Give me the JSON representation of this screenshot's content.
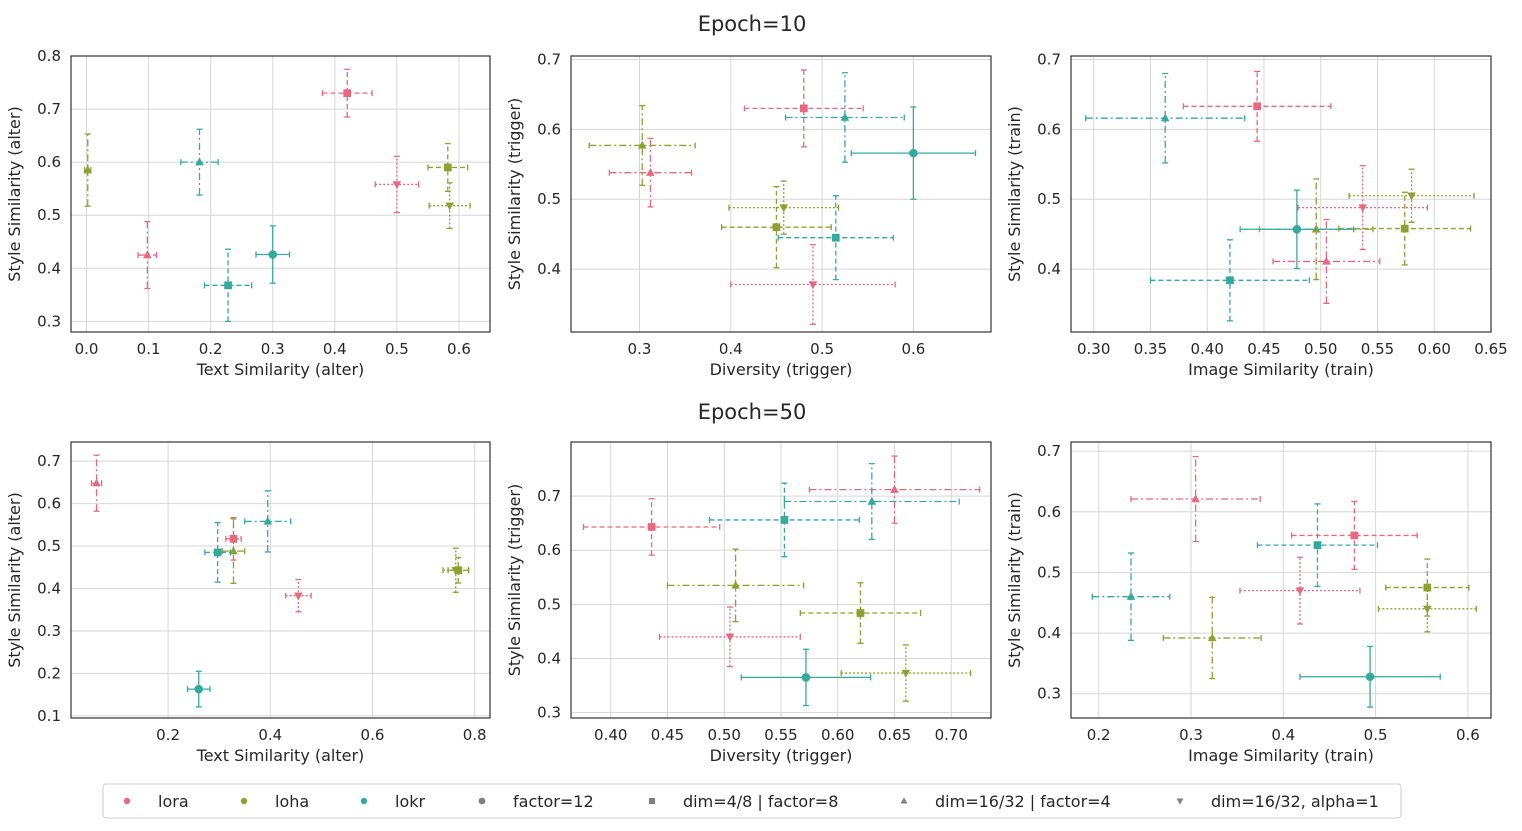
{
  "figure": {
    "row_titles": [
      "Epoch=10",
      "Epoch=50"
    ]
  },
  "colors": {
    "lora": "#e8697f",
    "loha": "#8ea031",
    "lokr": "#35aa9c",
    "marker_legend": "#808080"
  },
  "legend": {
    "placement": "bottom-center",
    "items": [
      {
        "label": "lora",
        "kind": "color",
        "key": "lora"
      },
      {
        "label": "loha",
        "kind": "color",
        "key": "loha"
      },
      {
        "label": "lokr",
        "kind": "color",
        "key": "lokr"
      },
      {
        "label": "factor=12",
        "kind": "marker",
        "marker": "circle"
      },
      {
        "label": "dim=4/8 | factor=8",
        "kind": "marker",
        "marker": "square"
      },
      {
        "label": "dim=16/32 | factor=4",
        "kind": "marker",
        "marker": "triangle-up"
      },
      {
        "label": "dim=16/32, alpha=1",
        "kind": "marker",
        "marker": "triangle-down"
      }
    ]
  },
  "chart_data": [
    {
      "type": "scatter",
      "row": 0,
      "col": 0,
      "xlabel": "Text Similarity (alter)",
      "ylabel": "Style Similarity (alter)",
      "xlim": [
        -0.025,
        0.65
      ],
      "ylim": [
        0.28,
        0.8
      ],
      "xticks": [
        0.0,
        0.1,
        0.2,
        0.3,
        0.4,
        0.5,
        0.6
      ],
      "xtick_labels": [
        "0.0",
        "0.1",
        "0.2",
        "0.3",
        "0.4",
        "0.5",
        "0.6"
      ],
      "yticks": [
        0.3,
        0.4,
        0.5,
        0.6,
        0.7,
        0.8
      ],
      "ytick_labels": [
        "0.3",
        "0.4",
        "0.5",
        "0.6",
        "0.7",
        "0.8"
      ],
      "grid": true,
      "points": [
        {
          "algo": "lora",
          "marker": "square",
          "x": 0.42,
          "y": 0.73,
          "xerr": 0.04,
          "yerr": 0.045
        },
        {
          "algo": "lora",
          "marker": "triangle-down",
          "x": 0.5,
          "y": 0.558,
          "xerr": 0.035,
          "yerr": 0.053
        },
        {
          "algo": "lora",
          "marker": "triangle-up",
          "x": 0.098,
          "y": 0.425,
          "xerr": 0.015,
          "yerr": 0.063
        },
        {
          "algo": "loha",
          "marker": "triangle-up",
          "x": 0.002,
          "y": 0.585,
          "xerr": 0.005,
          "yerr": 0.068
        },
        {
          "algo": "loha",
          "marker": "square",
          "x": 0.582,
          "y": 0.59,
          "xerr": 0.032,
          "yerr": 0.045
        },
        {
          "algo": "loha",
          "marker": "triangle-down",
          "x": 0.585,
          "y": 0.518,
          "xerr": 0.033,
          "yerr": 0.043
        },
        {
          "algo": "lokr",
          "marker": "triangle-up",
          "x": 0.182,
          "y": 0.6,
          "xerr": 0.03,
          "yerr": 0.062
        },
        {
          "algo": "lokr",
          "marker": "square",
          "x": 0.228,
          "y": 0.368,
          "xerr": 0.038,
          "yerr": 0.068
        },
        {
          "algo": "lokr",
          "marker": "circle",
          "x": 0.3,
          "y": 0.426,
          "xerr": 0.027,
          "yerr": 0.054
        }
      ]
    },
    {
      "type": "scatter",
      "row": 0,
      "col": 1,
      "xlabel": "Diversity (trigger)",
      "ylabel": "Style Similarity (trigger)",
      "xlim": [
        0.225,
        0.685
      ],
      "ylim": [
        0.31,
        0.705
      ],
      "xticks": [
        0.3,
        0.4,
        0.5,
        0.6
      ],
      "xtick_labels": [
        "0.3",
        "0.4",
        "0.5",
        "0.6"
      ],
      "yticks": [
        0.4,
        0.5,
        0.6,
        0.7
      ],
      "ytick_labels": [
        "0.4",
        "0.5",
        "0.6",
        "0.7"
      ],
      "grid": true,
      "points": [
        {
          "algo": "lora",
          "marker": "square",
          "x": 0.48,
          "y": 0.63,
          "xerr": 0.065,
          "yerr": 0.055
        },
        {
          "algo": "lora",
          "marker": "triangle-up",
          "x": 0.312,
          "y": 0.538,
          "xerr": 0.045,
          "yerr": 0.049
        },
        {
          "algo": "lora",
          "marker": "triangle-down",
          "x": 0.49,
          "y": 0.378,
          "xerr": 0.09,
          "yerr": 0.057
        },
        {
          "algo": "loha",
          "marker": "triangle-up",
          "x": 0.303,
          "y": 0.577,
          "xerr": 0.058,
          "yerr": 0.057
        },
        {
          "algo": "loha",
          "marker": "triangle-down",
          "x": 0.458,
          "y": 0.488,
          "xerr": 0.06,
          "yerr": 0.038
        },
        {
          "algo": "loha",
          "marker": "square",
          "x": 0.45,
          "y": 0.46,
          "xerr": 0.06,
          "yerr": 0.058
        },
        {
          "algo": "lokr",
          "marker": "triangle-up",
          "x": 0.525,
          "y": 0.617,
          "xerr": 0.065,
          "yerr": 0.064
        },
        {
          "algo": "lokr",
          "marker": "circle",
          "x": 0.6,
          "y": 0.566,
          "xerr": 0.068,
          "yerr": 0.066
        },
        {
          "algo": "lokr",
          "marker": "square",
          "x": 0.515,
          "y": 0.445,
          "xerr": 0.063,
          "yerr": 0.06
        }
      ]
    },
    {
      "type": "scatter",
      "row": 0,
      "col": 2,
      "xlabel": "Image Similarity (train)",
      "ylabel": "Style Similarity (train)",
      "xlim": [
        0.28,
        0.65
      ],
      "ylim": [
        0.31,
        0.705
      ],
      "xticks": [
        0.3,
        0.35,
        0.4,
        0.45,
        0.5,
        0.55,
        0.6,
        0.65
      ],
      "xtick_labels": [
        "0.30",
        "0.35",
        "0.40",
        "0.45",
        "0.50",
        "0.55",
        "0.60",
        "0.65"
      ],
      "yticks": [
        0.4,
        0.5,
        0.6,
        0.7
      ],
      "ytick_labels": [
        "0.4",
        "0.5",
        "0.6",
        "0.7"
      ],
      "grid": true,
      "points": [
        {
          "algo": "lora",
          "marker": "square",
          "x": 0.444,
          "y": 0.633,
          "xerr": 0.065,
          "yerr": 0.05
        },
        {
          "algo": "lora",
          "marker": "triangle-down",
          "x": 0.537,
          "y": 0.488,
          "xerr": 0.057,
          "yerr": 0.06
        },
        {
          "algo": "lora",
          "marker": "triangle-up",
          "x": 0.505,
          "y": 0.411,
          "xerr": 0.047,
          "yerr": 0.06
        },
        {
          "algo": "loha",
          "marker": "triangle-down",
          "x": 0.58,
          "y": 0.505,
          "xerr": 0.055,
          "yerr": 0.038
        },
        {
          "algo": "loha",
          "marker": "square",
          "x": 0.574,
          "y": 0.458,
          "xerr": 0.058,
          "yerr": 0.052
        },
        {
          "algo": "loha",
          "marker": "triangle-up",
          "x": 0.496,
          "y": 0.457,
          "xerr": 0.05,
          "yerr": 0.072
        },
        {
          "algo": "lokr",
          "marker": "triangle-up",
          "x": 0.363,
          "y": 0.616,
          "xerr": 0.07,
          "yerr": 0.064
        },
        {
          "algo": "lokr",
          "marker": "circle",
          "x": 0.479,
          "y": 0.457,
          "xerr": 0.05,
          "yerr": 0.056
        },
        {
          "algo": "lokr",
          "marker": "square",
          "x": 0.42,
          "y": 0.384,
          "xerr": 0.07,
          "yerr": 0.058
        }
      ]
    },
    {
      "type": "scatter",
      "row": 1,
      "col": 0,
      "xlabel": "Text Similarity (alter)",
      "ylabel": "Style Similarity (alter)",
      "xlim": [
        0.01,
        0.83
      ],
      "ylim": [
        0.095,
        0.745
      ],
      "xticks": [
        0.2,
        0.4,
        0.6,
        0.8
      ],
      "xtick_labels": [
        "0.2",
        "0.4",
        "0.6",
        "0.8"
      ],
      "yticks": [
        0.1,
        0.2,
        0.3,
        0.4,
        0.5,
        0.6,
        0.7
      ],
      "ytick_labels": [
        "0.1",
        "0.2",
        "0.3",
        "0.4",
        "0.5",
        "0.6",
        "0.7"
      ],
      "grid": true,
      "points": [
        {
          "algo": "lora",
          "marker": "triangle-up",
          "x": 0.06,
          "y": 0.648,
          "xerr": 0.01,
          "yerr": 0.066
        },
        {
          "algo": "lora",
          "marker": "square",
          "x": 0.328,
          "y": 0.517,
          "xerr": 0.015,
          "yerr": 0.05
        },
        {
          "algo": "lora",
          "marker": "triangle-down",
          "x": 0.455,
          "y": 0.383,
          "xerr": 0.025,
          "yerr": 0.038
        },
        {
          "algo": "loha",
          "marker": "triangle-up",
          "x": 0.328,
          "y": 0.488,
          "xerr": 0.022,
          "yerr": 0.076
        },
        {
          "algo": "loha",
          "marker": "square",
          "x": 0.768,
          "y": 0.443,
          "xerr": 0.02,
          "yerr": 0.03
        },
        {
          "algo": "loha",
          "marker": "triangle-down",
          "x": 0.763,
          "y": 0.443,
          "xerr": 0.025,
          "yerr": 0.052
        },
        {
          "algo": "lokr",
          "marker": "triangle-up",
          "x": 0.395,
          "y": 0.558,
          "xerr": 0.045,
          "yerr": 0.072
        },
        {
          "algo": "lokr",
          "marker": "square",
          "x": 0.297,
          "y": 0.485,
          "xerr": 0.025,
          "yerr": 0.07
        },
        {
          "algo": "lokr",
          "marker": "circle",
          "x": 0.26,
          "y": 0.163,
          "xerr": 0.022,
          "yerr": 0.042
        }
      ]
    },
    {
      "type": "scatter",
      "row": 1,
      "col": 1,
      "xlabel": "Diversity (trigger)",
      "ylabel": "Style Similarity (trigger)",
      "xlim": [
        0.365,
        0.735
      ],
      "ylim": [
        0.29,
        0.8
      ],
      "xticks": [
        0.4,
        0.45,
        0.5,
        0.55,
        0.6,
        0.65,
        0.7
      ],
      "xtick_labels": [
        "0.40",
        "0.45",
        "0.50",
        "0.55",
        "0.60",
        "0.65",
        "0.70"
      ],
      "yticks": [
        0.3,
        0.4,
        0.5,
        0.6,
        0.7
      ],
      "ytick_labels": [
        "0.3",
        "0.4",
        "0.5",
        "0.6",
        "0.7"
      ],
      "grid": true,
      "points": [
        {
          "algo": "lora",
          "marker": "triangle-up",
          "x": 0.65,
          "y": 0.712,
          "xerr": 0.075,
          "yerr": 0.062
        },
        {
          "algo": "lora",
          "marker": "square",
          "x": 0.436,
          "y": 0.643,
          "xerr": 0.06,
          "yerr": 0.052
        },
        {
          "algo": "lora",
          "marker": "triangle-down",
          "x": 0.505,
          "y": 0.44,
          "xerr": 0.062,
          "yerr": 0.055
        },
        {
          "algo": "loha",
          "marker": "triangle-up",
          "x": 0.51,
          "y": 0.535,
          "xerr": 0.06,
          "yerr": 0.067
        },
        {
          "algo": "loha",
          "marker": "square",
          "x": 0.62,
          "y": 0.484,
          "xerr": 0.053,
          "yerr": 0.056
        },
        {
          "algo": "loha",
          "marker": "triangle-down",
          "x": 0.66,
          "y": 0.373,
          "xerr": 0.057,
          "yerr": 0.052
        },
        {
          "algo": "lokr",
          "marker": "triangle-up",
          "x": 0.63,
          "y": 0.69,
          "xerr": 0.077,
          "yerr": 0.07
        },
        {
          "algo": "lokr",
          "marker": "square",
          "x": 0.553,
          "y": 0.656,
          "xerr": 0.066,
          "yerr": 0.068
        },
        {
          "algo": "lokr",
          "marker": "circle",
          "x": 0.572,
          "y": 0.365,
          "xerr": 0.057,
          "yerr": 0.052
        }
      ]
    },
    {
      "type": "scatter",
      "row": 1,
      "col": 2,
      "xlabel": "Image Similarity (train)",
      "ylabel": "Style Similarity (train)",
      "xlim": [
        0.17,
        0.625
      ],
      "ylim": [
        0.26,
        0.715
      ],
      "xticks": [
        0.2,
        0.3,
        0.4,
        0.5,
        0.6
      ],
      "xtick_labels": [
        "0.2",
        "0.3",
        "0.4",
        "0.5",
        "0.6"
      ],
      "yticks": [
        0.3,
        0.4,
        0.5,
        0.6,
        0.7
      ],
      "ytick_labels": [
        "0.3",
        "0.4",
        "0.5",
        "0.6",
        "0.7"
      ],
      "grid": true,
      "points": [
        {
          "algo": "lora",
          "marker": "triangle-up",
          "x": 0.305,
          "y": 0.621,
          "xerr": 0.07,
          "yerr": 0.07
        },
        {
          "algo": "lora",
          "marker": "square",
          "x": 0.477,
          "y": 0.561,
          "xerr": 0.068,
          "yerr": 0.056
        },
        {
          "algo": "lora",
          "marker": "triangle-down",
          "x": 0.418,
          "y": 0.47,
          "xerr": 0.065,
          "yerr": 0.055
        },
        {
          "algo": "loha",
          "marker": "square",
          "x": 0.556,
          "y": 0.475,
          "xerr": 0.045,
          "yerr": 0.047
        },
        {
          "algo": "loha",
          "marker": "triangle-down",
          "x": 0.556,
          "y": 0.44,
          "xerr": 0.053,
          "yerr": 0.038
        },
        {
          "algo": "loha",
          "marker": "triangle-up",
          "x": 0.323,
          "y": 0.392,
          "xerr": 0.053,
          "yerr": 0.067
        },
        {
          "algo": "lokr",
          "marker": "square",
          "x": 0.437,
          "y": 0.545,
          "xerr": 0.065,
          "yerr": 0.068
        },
        {
          "algo": "lokr",
          "marker": "triangle-up",
          "x": 0.235,
          "y": 0.46,
          "xerr": 0.042,
          "yerr": 0.072
        },
        {
          "algo": "lokr",
          "marker": "circle",
          "x": 0.494,
          "y": 0.328,
          "xerr": 0.076,
          "yerr": 0.05
        }
      ]
    }
  ]
}
